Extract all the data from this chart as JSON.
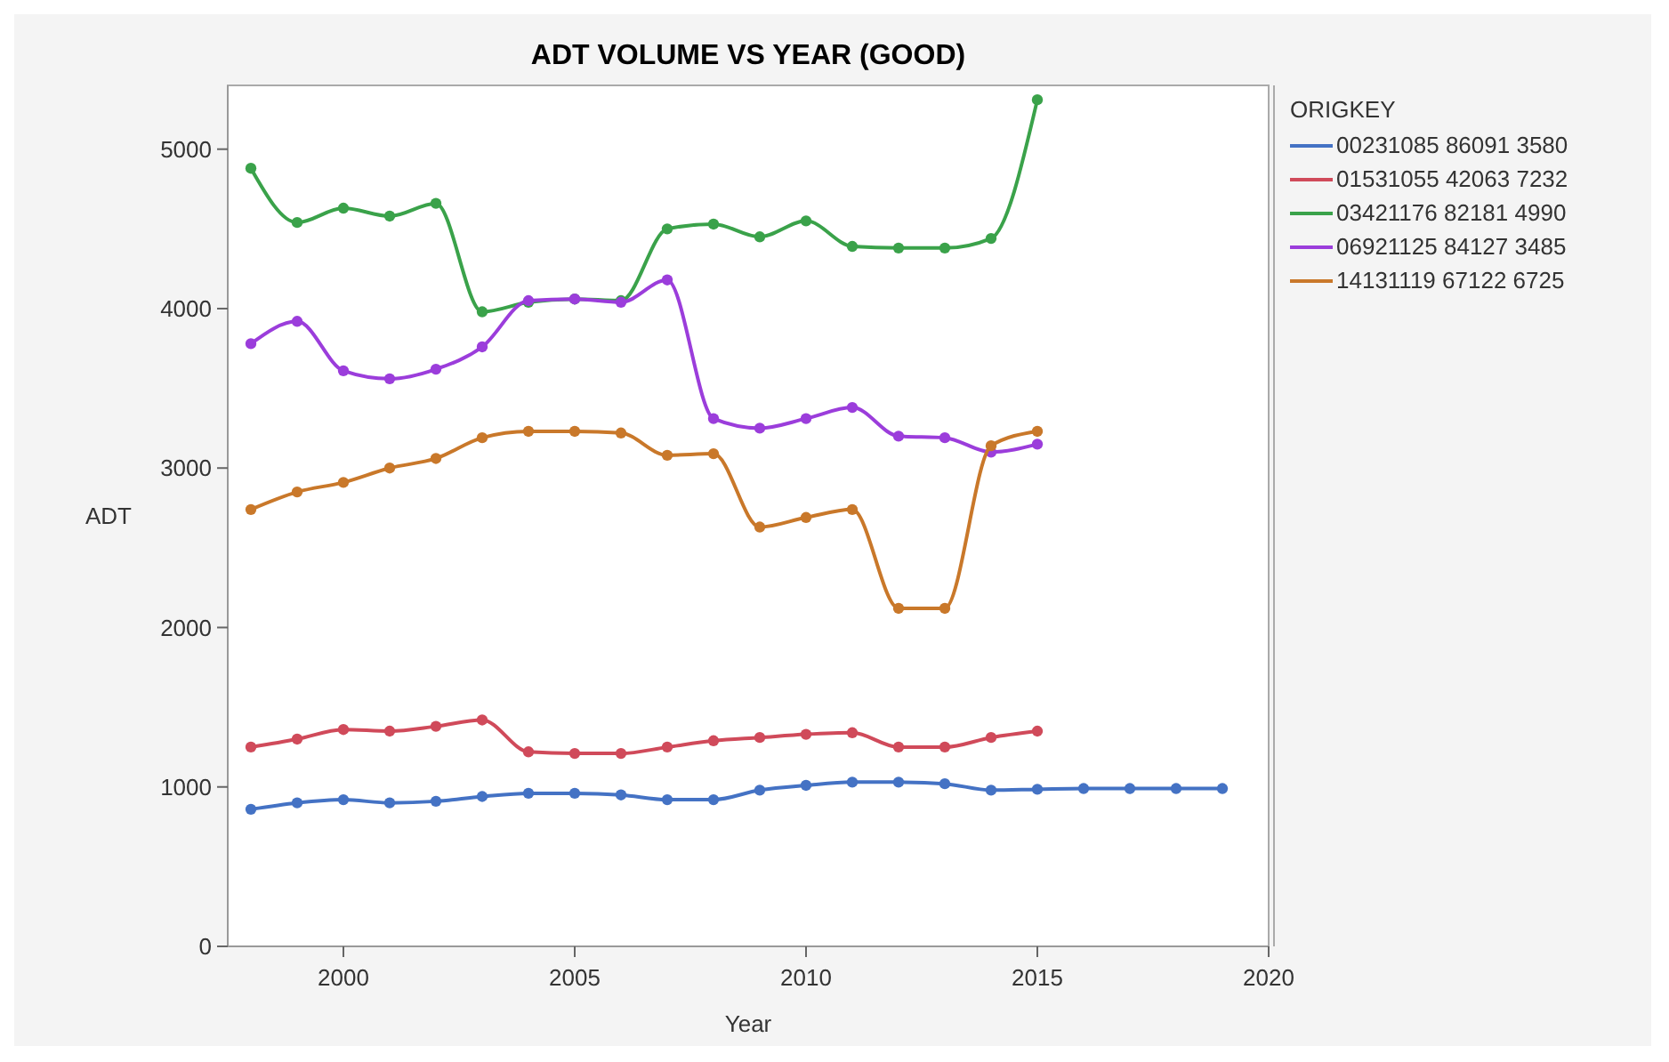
{
  "chart_data": {
    "type": "line",
    "title": "ADT VOLUME VS YEAR (GOOD)",
    "xlabel": "Year",
    "ylabel": "ADT",
    "legend_title": "ORIGKEY",
    "legend": "right",
    "marker": "circle",
    "grid": false,
    "xlim": [
      1997.5,
      2020
    ],
    "xticks": [
      2000,
      2005,
      2010,
      2015,
      2020
    ],
    "ylim": [
      0,
      5400
    ],
    "yticks": [
      0,
      1000,
      2000,
      3000,
      4000,
      5000
    ],
    "x": [
      1998,
      1999,
      2000,
      2001,
      2002,
      2003,
      2004,
      2005,
      2006,
      2007,
      2008,
      2009,
      2010,
      2011,
      2012,
      2013,
      2014,
      2015,
      2016,
      2017,
      2018,
      2019
    ],
    "series": [
      {
        "name": "00231085 86091 3580",
        "color": "#4472c4",
        "values": [
          860,
          900,
          920,
          900,
          910,
          940,
          960,
          960,
          950,
          920,
          920,
          980,
          1010,
          1030,
          1030,
          1020,
          980,
          985,
          990,
          990,
          990,
          990
        ]
      },
      {
        "name": "01531055 42063 7232",
        "color": "#d04a5a",
        "values": [
          1250,
          1300,
          1360,
          1350,
          1380,
          1420,
          1220,
          1210,
          1210,
          1250,
          1290,
          1310,
          1330,
          1340,
          1250,
          1250,
          1310,
          1350,
          null,
          null,
          null,
          null
        ]
      },
      {
        "name": "03421176 82181 4990",
        "color": "#3aa24a",
        "values": [
          4880,
          4540,
          4630,
          4580,
          4660,
          3980,
          4040,
          4060,
          4050,
          4500,
          4530,
          4450,
          4550,
          4390,
          4380,
          4380,
          4440,
          5310,
          null,
          null,
          null,
          null
        ]
      },
      {
        "name": "06921125 84127 3485",
        "color": "#9b3ddb",
        "values": [
          3780,
          3920,
          3610,
          3560,
          3620,
          3760,
          4050,
          4060,
          4040,
          4180,
          3310,
          3250,
          3310,
          3380,
          3200,
          3190,
          3100,
          3150,
          null,
          null,
          null,
          null
        ]
      },
      {
        "name": "14131119 67122 6725",
        "color": "#c9782a",
        "values": [
          2740,
          2850,
          2910,
          3000,
          3060,
          3190,
          3230,
          3230,
          3220,
          3080,
          3090,
          2630,
          2690,
          2740,
          2120,
          2120,
          3140,
          3230,
          null,
          null,
          null,
          null
        ]
      }
    ]
  }
}
